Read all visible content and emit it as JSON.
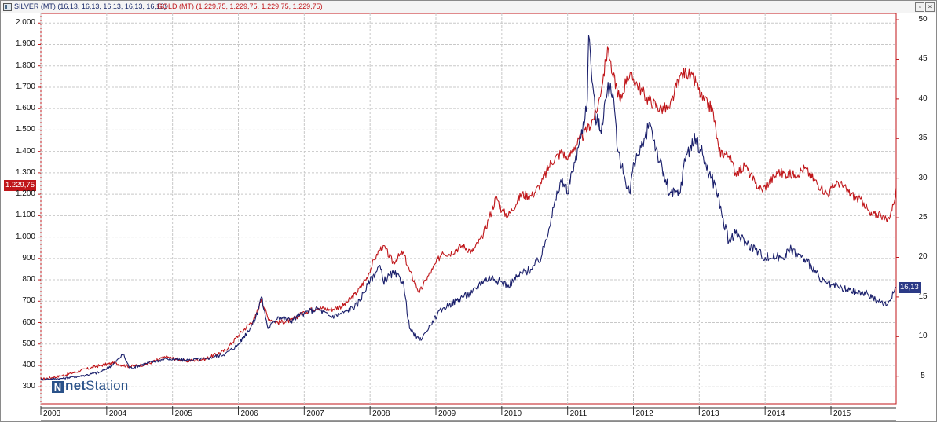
{
  "window": {
    "title_silver": "SILVER (MT) (16,13, 16,13, 16,13, 16,13, 16,13)",
    "title_gold": "GOLD (MT) (1.229,75, 1.229,75, 1.229,75, 1.229,75)",
    "restore_button": "▫",
    "close_button": "×"
  },
  "logo": {
    "mark": "N",
    "net": "net",
    "station": "Station"
  },
  "colors": {
    "gold": "#c0161a",
    "silver": "#1a1f6b",
    "grid": "#c8c8c8"
  },
  "chart_data": {
    "type": "line",
    "left_axis": {
      "ticks": [
        300,
        400,
        500,
        600,
        700,
        800,
        900,
        1000,
        1100,
        1200,
        1300,
        1400,
        1500,
        1600,
        1700,
        1800,
        1900,
        2000
      ],
      "tick_labels": [
        "300",
        "400",
        "500",
        "600",
        "700",
        "800",
        "900",
        "1.000",
        "1.100",
        "1.200",
        "1.300",
        "1.400",
        "1.500",
        "1.600",
        "1.700",
        "1.800",
        "1.900",
        "2.000"
      ],
      "range": [
        220,
        2045
      ]
    },
    "right_axis": {
      "ticks": [
        5,
        10,
        15,
        20,
        25,
        30,
        35,
        40,
        45,
        50
      ],
      "tick_labels": [
        "5",
        "10",
        "15",
        "20",
        "25",
        "30",
        "35",
        "40",
        "45",
        "50"
      ],
      "range": [
        1.5,
        50.8
      ]
    },
    "x_axis": {
      "range": [
        2003.0,
        2015.99
      ],
      "tick_labels": [
        "2003",
        "2004",
        "2005",
        "2006",
        "2007",
        "2008",
        "2009",
        "2010",
        "2011",
        "2012",
        "2013",
        "2014",
        "2015"
      ],
      "tick_positions": [
        2003.0,
        2004.0,
        2005.0,
        2006.0,
        2007.0,
        2008.0,
        2009.0,
        2010.0,
        2011.0,
        2012.0,
        2013.0,
        2014.0,
        2015.0
      ]
    },
    "grid": true,
    "last_values": {
      "gold": "1.229,75",
      "silver": "16,13"
    },
    "series": [
      {
        "name": "GOLD (MT)",
        "axis": "left",
        "x": [
          2003.0,
          2003.3,
          2003.6,
          2003.9,
          2004.1,
          2004.35,
          2004.6,
          2004.9,
          2005.2,
          2005.5,
          2005.8,
          2006.0,
          2006.25,
          2006.35,
          2006.45,
          2006.6,
          2006.8,
          2007.0,
          2007.2,
          2007.4,
          2007.6,
          2007.8,
          2007.95,
          2008.1,
          2008.2,
          2008.35,
          2008.5,
          2008.6,
          2008.75,
          2008.85,
          2008.95,
          2009.1,
          2009.2,
          2009.4,
          2009.55,
          2009.7,
          2009.8,
          2009.92,
          2010.0,
          2010.1,
          2010.3,
          2010.45,
          2010.6,
          2010.75,
          2010.92,
          2011.0,
          2011.1,
          2011.3,
          2011.45,
          2011.58,
          2011.62,
          2011.68,
          2011.75,
          2011.8,
          2011.9,
          2012.0,
          2012.2,
          2012.4,
          2012.55,
          2012.7,
          2012.8,
          2012.95,
          2013.05,
          2013.2,
          2013.3,
          2013.45,
          2013.55,
          2013.7,
          2013.85,
          2013.95,
          2014.2,
          2014.45,
          2014.6,
          2014.85,
          2014.95,
          2015.1,
          2015.3,
          2015.5,
          2015.6,
          2015.75,
          2015.85,
          2015.95,
          2015.99
        ],
        "values": [
          335,
          350,
          375,
          400,
          410,
          395,
          405,
          440,
          420,
          430,
          470,
          540,
          620,
          710,
          620,
          600,
          610,
          650,
          670,
          660,
          680,
          740,
          810,
          920,
          960,
          880,
          930,
          840,
          740,
          800,
          850,
          930,
          920,
          960,
          930,
          1000,
          1080,
          1190,
          1120,
          1100,
          1200,
          1190,
          1250,
          1350,
          1400,
          1360,
          1420,
          1500,
          1590,
          1820,
          1880,
          1760,
          1700,
          1630,
          1750,
          1740,
          1650,
          1600,
          1600,
          1750,
          1770,
          1720,
          1640,
          1600,
          1400,
          1380,
          1300,
          1330,
          1250,
          1220,
          1300,
          1290,
          1320,
          1230,
          1200,
          1260,
          1200,
          1160,
          1100,
          1110,
          1070,
          1150,
          1230
        ]
      },
      {
        "name": "SILVER (MT)",
        "axis": "right",
        "x": [
          2003.0,
          2003.3,
          2003.6,
          2003.9,
          2004.1,
          2004.25,
          2004.35,
          2004.6,
          2004.9,
          2005.2,
          2005.5,
          2005.8,
          2006.0,
          2006.25,
          2006.35,
          2006.45,
          2006.6,
          2006.8,
          2007.0,
          2007.2,
          2007.4,
          2007.6,
          2007.8,
          2008.0,
          2008.15,
          2008.2,
          2008.35,
          2008.5,
          2008.6,
          2008.75,
          2008.85,
          2008.95,
          2009.1,
          2009.2,
          2009.4,
          2009.55,
          2009.7,
          2009.85,
          2009.95,
          2010.1,
          2010.3,
          2010.45,
          2010.6,
          2010.75,
          2010.85,
          2010.92,
          2011.0,
          2011.1,
          2011.2,
          2011.3,
          2011.32,
          2011.42,
          2011.5,
          2011.58,
          2011.65,
          2011.7,
          2011.75,
          2011.8,
          2011.95,
          2012.0,
          2012.15,
          2012.25,
          2012.4,
          2012.55,
          2012.7,
          2012.8,
          2012.95,
          2013.05,
          2013.15,
          2013.25,
          2013.35,
          2013.45,
          2013.55,
          2013.7,
          2013.85,
          2014.0,
          2014.25,
          2014.4,
          2014.55,
          2014.7,
          2014.85,
          2015.0,
          2015.2,
          2015.4,
          2015.55,
          2015.7,
          2015.85,
          2015.95,
          2015.99
        ],
        "values": [
          4.6,
          4.7,
          5.0,
          5.5,
          6.5,
          7.8,
          6.0,
          6.6,
          7.2,
          7.0,
          7.2,
          7.8,
          9.0,
          12.0,
          15.0,
          11.0,
          12.5,
          12.0,
          13.0,
          13.5,
          12.5,
          13.0,
          14.0,
          17.0,
          19.0,
          17.0,
          18.0,
          17.0,
          11.0,
          9.5,
          10.5,
          12.0,
          13.5,
          14.0,
          15.0,
          15.5,
          17.0,
          17.5,
          17.0,
          16.5,
          18.0,
          18.5,
          20.0,
          25.0,
          28.0,
          30.0,
          28.0,
          32.0,
          35.0,
          40.0,
          48.0,
          38.0,
          36.0,
          40.0,
          42.0,
          40.0,
          34.0,
          32.0,
          28.0,
          32.0,
          34.0,
          37.0,
          32.0,
          28.0,
          28.0,
          33.0,
          35.0,
          33.0,
          30.5,
          29.0,
          25.0,
          22.0,
          23.0,
          22.0,
          21.0,
          20.0,
          20.0,
          21.0,
          20.0,
          19.0,
          17.0,
          16.5,
          16.0,
          15.5,
          15.5,
          14.5,
          14.0,
          15.5,
          16.13
        ]
      }
    ]
  }
}
